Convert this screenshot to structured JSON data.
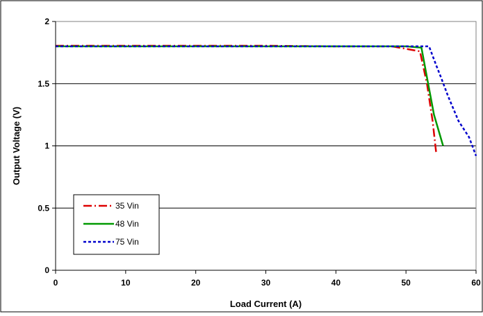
{
  "chart_data": {
    "type": "line",
    "title": "",
    "xlabel": "Load Current (A)",
    "ylabel": "Output Voltage (V)",
    "xlim": [
      0,
      60
    ],
    "ylim": [
      0,
      2
    ],
    "xticks": [
      0,
      10,
      20,
      30,
      40,
      50,
      60
    ],
    "yticks": [
      0,
      0.5,
      1,
      1.5,
      2
    ],
    "xtick_labels": [
      "0",
      "10",
      "20",
      "30",
      "40",
      "50",
      "60"
    ],
    "ytick_labels": [
      "0",
      "0.5",
      "1",
      "1.5",
      "2"
    ],
    "grid": "horizontal",
    "legend_position": "bottom-left",
    "series": [
      {
        "name": "35 Vin",
        "color": "#dd0000",
        "dash": "dash-dot",
        "x": [
          0,
          10,
          20,
          30,
          40,
          48,
          50,
          52,
          53,
          53.8,
          54.3
        ],
        "y": [
          1.805,
          1.805,
          1.805,
          1.805,
          1.8,
          1.8,
          1.78,
          1.76,
          1.5,
          1.2,
          0.95
        ]
      },
      {
        "name": "48 Vin",
        "color": "#009900",
        "dash": "solid",
        "x": [
          0,
          10,
          20,
          30,
          40,
          50,
          52.2,
          53,
          54,
          55.3
        ],
        "y": [
          1.8,
          1.8,
          1.8,
          1.8,
          1.8,
          1.8,
          1.79,
          1.55,
          1.25,
          1.0
        ]
      },
      {
        "name": "75 Vin",
        "color": "#0000cc",
        "dash": "dotted",
        "x": [
          0,
          10,
          20,
          30,
          40,
          50,
          52.5,
          53.3,
          54.3,
          55,
          56,
          57.5,
          59,
          60
        ],
        "y": [
          1.8,
          1.8,
          1.8,
          1.8,
          1.8,
          1.8,
          1.8,
          1.8,
          1.65,
          1.55,
          1.4,
          1.2,
          1.07,
          0.92
        ]
      }
    ]
  }
}
